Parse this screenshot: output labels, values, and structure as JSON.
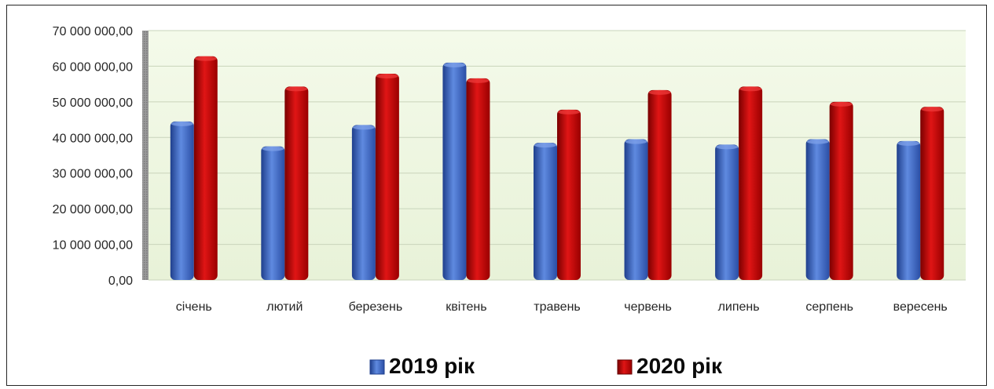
{
  "chart_data": {
    "type": "bar",
    "categories": [
      "січень",
      "лютий",
      "березень",
      "квітень",
      "травень",
      "червень",
      "липень",
      "серпень",
      "вересень"
    ],
    "series": [
      {
        "name": "2019 рік",
        "color": "#3a63c4",
        "values": [
          44500000,
          37500000,
          43500000,
          61000000,
          38500000,
          39500000,
          38000000,
          39500000,
          39000000
        ]
      },
      {
        "name": "2020 рік",
        "color": "#c00000",
        "values": [
          62800000,
          54300000,
          57900000,
          56600000,
          47800000,
          53300000,
          54300000,
          50000000,
          48600000
        ]
      }
    ],
    "yticks": [
      "0,00",
      "10 000 000,00",
      "20 000 000,00",
      "30 000 000,00",
      "40 000 000,00",
      "50 000 000,00",
      "60 000 000,00",
      "70 000 000,00"
    ],
    "ylim": [
      0,
      70000000
    ],
    "grid": true,
    "legend": "bottom"
  }
}
